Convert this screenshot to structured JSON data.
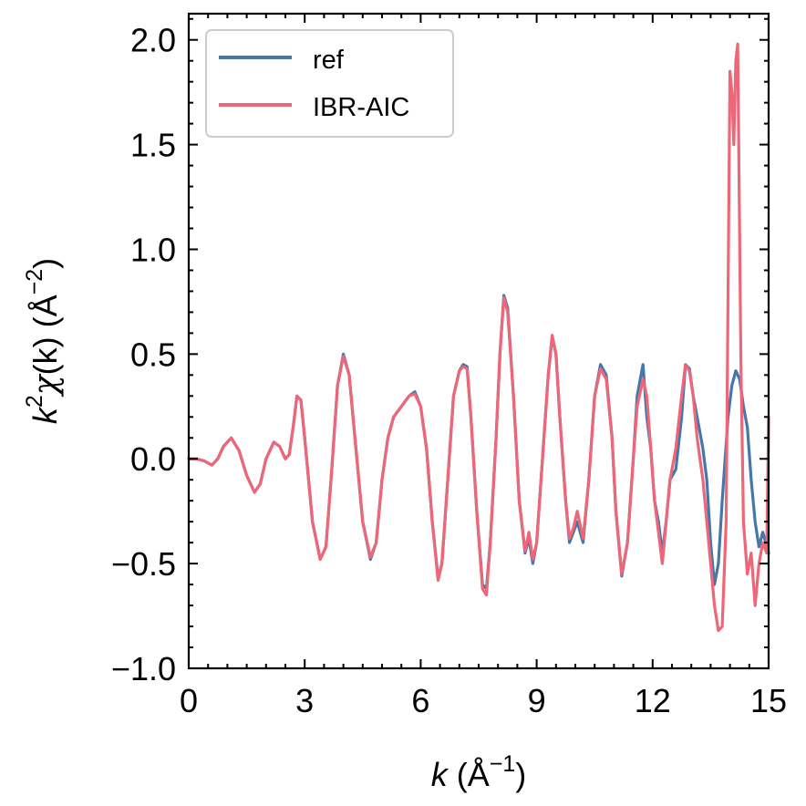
{
  "chart_data": {
    "type": "line",
    "xlabel_var": "k",
    "xlabel_rest": " (Å",
    "xlabel_sup": "−1",
    "xlabel_end": ")",
    "ylabel_var": "k",
    "ylabel_sup1": "2",
    "ylabel_chi": "χ",
    "ylabel_rest": "(k) (Å",
    "ylabel_sup2": "−2",
    "ylabel_end": ")",
    "xlim": [
      0,
      15
    ],
    "ylim": [
      -1.0,
      2.125
    ],
    "x_ticks": [
      0,
      3,
      6,
      9,
      12,
      15
    ],
    "x_tick_labels": [
      "0",
      "3",
      "6",
      "9",
      "12",
      "15"
    ],
    "y_ticks": [
      -1.0,
      -0.5,
      0.0,
      0.5,
      1.0,
      1.5,
      2.0
    ],
    "y_tick_labels": [
      "−1.0",
      "−0.5",
      "0.0",
      "0.5",
      "1.0",
      "1.5",
      "2.0"
    ],
    "grid": false,
    "legend_position": "top-left",
    "series": [
      {
        "name": "ref",
        "color": "#4477AA",
        "points": [
          [
            0.0,
            0.0
          ],
          [
            0.2,
            0.0
          ],
          [
            0.4,
            -0.01
          ],
          [
            0.6,
            -0.03
          ],
          [
            0.75,
            0.0
          ],
          [
            0.9,
            0.06
          ],
          [
            1.1,
            0.1
          ],
          [
            1.3,
            0.04
          ],
          [
            1.5,
            -0.08
          ],
          [
            1.7,
            -0.16
          ],
          [
            1.85,
            -0.12
          ],
          [
            2.0,
            0.0
          ],
          [
            2.2,
            0.08
          ],
          [
            2.35,
            0.06
          ],
          [
            2.5,
            0.0
          ],
          [
            2.6,
            0.02
          ],
          [
            2.7,
            0.15
          ],
          [
            2.8,
            0.3
          ],
          [
            2.9,
            0.28
          ],
          [
            3.0,
            0.1
          ],
          [
            3.2,
            -0.3
          ],
          [
            3.4,
            -0.48
          ],
          [
            3.55,
            -0.42
          ],
          [
            3.7,
            -0.05
          ],
          [
            3.85,
            0.35
          ],
          [
            4.0,
            0.5
          ],
          [
            4.15,
            0.4
          ],
          [
            4.3,
            0.1
          ],
          [
            4.5,
            -0.3
          ],
          [
            4.7,
            -0.48
          ],
          [
            4.85,
            -0.4
          ],
          [
            5.0,
            -0.1
          ],
          [
            5.15,
            0.1
          ],
          [
            5.3,
            0.2
          ],
          [
            5.5,
            0.25
          ],
          [
            5.7,
            0.3
          ],
          [
            5.85,
            0.32
          ],
          [
            6.0,
            0.25
          ],
          [
            6.15,
            0.05
          ],
          [
            6.3,
            -0.3
          ],
          [
            6.45,
            -0.57
          ],
          [
            6.55,
            -0.5
          ],
          [
            6.7,
            -0.1
          ],
          [
            6.85,
            0.3
          ],
          [
            7.0,
            0.42
          ],
          [
            7.1,
            0.45
          ],
          [
            7.2,
            0.44
          ],
          [
            7.3,
            0.2
          ],
          [
            7.45,
            -0.25
          ],
          [
            7.6,
            -0.6
          ],
          [
            7.7,
            -0.62
          ],
          [
            7.8,
            -0.4
          ],
          [
            7.95,
            0.1
          ],
          [
            8.05,
            0.5
          ],
          [
            8.15,
            0.78
          ],
          [
            8.25,
            0.72
          ],
          [
            8.4,
            0.3
          ],
          [
            8.55,
            -0.2
          ],
          [
            8.7,
            -0.45
          ],
          [
            8.8,
            -0.38
          ],
          [
            8.9,
            -0.5
          ],
          [
            9.0,
            -0.4
          ],
          [
            9.15,
            0.0
          ],
          [
            9.3,
            0.4
          ],
          [
            9.4,
            0.58
          ],
          [
            9.5,
            0.5
          ],
          [
            9.6,
            0.2
          ],
          [
            9.75,
            -0.2
          ],
          [
            9.85,
            -0.4
          ],
          [
            9.95,
            -0.35
          ],
          [
            10.05,
            -0.3
          ],
          [
            10.2,
            -0.4
          ],
          [
            10.35,
            -0.1
          ],
          [
            10.5,
            0.3
          ],
          [
            10.65,
            0.45
          ],
          [
            10.8,
            0.4
          ],
          [
            10.95,
            0.1
          ],
          [
            11.05,
            -0.25
          ],
          [
            11.2,
            -0.56
          ],
          [
            11.35,
            -0.4
          ],
          [
            11.5,
            0.0
          ],
          [
            11.6,
            0.3
          ],
          [
            11.75,
            0.45
          ],
          [
            11.85,
            0.2
          ],
          [
            11.95,
            0.05
          ],
          [
            12.05,
            -0.2
          ],
          [
            12.15,
            -0.3
          ],
          [
            12.25,
            -0.45
          ],
          [
            12.35,
            -0.3
          ],
          [
            12.45,
            -0.1
          ],
          [
            12.6,
            -0.05
          ],
          [
            12.75,
            0.2
          ],
          [
            12.85,
            0.45
          ],
          [
            12.95,
            0.43
          ],
          [
            13.05,
            0.3
          ],
          [
            13.15,
            0.2
          ],
          [
            13.3,
            0.05
          ],
          [
            13.4,
            -0.1
          ],
          [
            13.5,
            -0.4
          ],
          [
            13.6,
            -0.6
          ],
          [
            13.7,
            -0.5
          ],
          [
            13.8,
            -0.2
          ],
          [
            13.95,
            0.2
          ],
          [
            14.05,
            0.35
          ],
          [
            14.15,
            0.42
          ],
          [
            14.25,
            0.38
          ],
          [
            14.35,
            0.25
          ],
          [
            14.45,
            0.15
          ],
          [
            14.55,
            -0.1
          ],
          [
            14.65,
            -0.3
          ],
          [
            14.75,
            -0.42
          ],
          [
            14.85,
            -0.35
          ],
          [
            15.0,
            -0.45
          ]
        ]
      },
      {
        "name": "IBR-AIC",
        "color": "#EE6677",
        "points": [
          [
            0.0,
            0.0
          ],
          [
            0.2,
            0.0
          ],
          [
            0.4,
            -0.01
          ],
          [
            0.6,
            -0.03
          ],
          [
            0.75,
            0.0
          ],
          [
            0.9,
            0.06
          ],
          [
            1.1,
            0.1
          ],
          [
            1.3,
            0.04
          ],
          [
            1.5,
            -0.08
          ],
          [
            1.7,
            -0.16
          ],
          [
            1.85,
            -0.12
          ],
          [
            2.0,
            0.0
          ],
          [
            2.2,
            0.08
          ],
          [
            2.35,
            0.06
          ],
          [
            2.5,
            0.0
          ],
          [
            2.6,
            0.02
          ],
          [
            2.7,
            0.15
          ],
          [
            2.8,
            0.3
          ],
          [
            2.9,
            0.28
          ],
          [
            3.0,
            0.1
          ],
          [
            3.2,
            -0.3
          ],
          [
            3.4,
            -0.48
          ],
          [
            3.55,
            -0.42
          ],
          [
            3.7,
            -0.05
          ],
          [
            3.85,
            0.35
          ],
          [
            4.0,
            0.49
          ],
          [
            4.15,
            0.4
          ],
          [
            4.3,
            0.1
          ],
          [
            4.5,
            -0.3
          ],
          [
            4.7,
            -0.47
          ],
          [
            4.85,
            -0.4
          ],
          [
            5.0,
            -0.1
          ],
          [
            5.15,
            0.1
          ],
          [
            5.3,
            0.2
          ],
          [
            5.5,
            0.25
          ],
          [
            5.7,
            0.3
          ],
          [
            5.85,
            0.31
          ],
          [
            6.0,
            0.25
          ],
          [
            6.15,
            0.05
          ],
          [
            6.3,
            -0.3
          ],
          [
            6.45,
            -0.58
          ],
          [
            6.55,
            -0.5
          ],
          [
            6.7,
            -0.1
          ],
          [
            6.85,
            0.3
          ],
          [
            7.0,
            0.42
          ],
          [
            7.1,
            0.44
          ],
          [
            7.2,
            0.43
          ],
          [
            7.3,
            0.2
          ],
          [
            7.45,
            -0.25
          ],
          [
            7.6,
            -0.62
          ],
          [
            7.7,
            -0.65
          ],
          [
            7.8,
            -0.4
          ],
          [
            7.95,
            0.1
          ],
          [
            8.05,
            0.5
          ],
          [
            8.15,
            0.77
          ],
          [
            8.25,
            0.7
          ],
          [
            8.4,
            0.3
          ],
          [
            8.55,
            -0.2
          ],
          [
            8.7,
            -0.44
          ],
          [
            8.8,
            -0.35
          ],
          [
            8.9,
            -0.48
          ],
          [
            9.0,
            -0.4
          ],
          [
            9.15,
            0.0
          ],
          [
            9.3,
            0.4
          ],
          [
            9.4,
            0.59
          ],
          [
            9.5,
            0.5
          ],
          [
            9.6,
            0.2
          ],
          [
            9.75,
            -0.2
          ],
          [
            9.85,
            -0.38
          ],
          [
            9.95,
            -0.33
          ],
          [
            10.05,
            -0.25
          ],
          [
            10.2,
            -0.38
          ],
          [
            10.35,
            -0.1
          ],
          [
            10.5,
            0.3
          ],
          [
            10.65,
            0.43
          ],
          [
            10.8,
            0.38
          ],
          [
            10.95,
            0.1
          ],
          [
            11.05,
            -0.25
          ],
          [
            11.2,
            -0.55
          ],
          [
            11.35,
            -0.4
          ],
          [
            11.5,
            0.0
          ],
          [
            11.6,
            0.25
          ],
          [
            11.75,
            0.38
          ],
          [
            11.85,
            0.3
          ],
          [
            11.95,
            0.05
          ],
          [
            12.05,
            -0.2
          ],
          [
            12.15,
            -0.35
          ],
          [
            12.25,
            -0.5
          ],
          [
            12.35,
            -0.3
          ],
          [
            12.45,
            -0.1
          ],
          [
            12.6,
            0.05
          ],
          [
            12.75,
            0.3
          ],
          [
            12.85,
            0.45
          ],
          [
            12.95,
            0.42
          ],
          [
            13.05,
            0.3
          ],
          [
            13.15,
            0.1
          ],
          [
            13.3,
            -0.1
          ],
          [
            13.4,
            -0.3
          ],
          [
            13.5,
            -0.5
          ],
          [
            13.6,
            -0.7
          ],
          [
            13.7,
            -0.82
          ],
          [
            13.8,
            -0.8
          ],
          [
            13.9,
            -0.3
          ],
          [
            14.0,
            1.85
          ],
          [
            14.05,
            1.75
          ],
          [
            14.1,
            1.5
          ],
          [
            14.15,
            1.9
          ],
          [
            14.2,
            1.98
          ],
          [
            14.28,
            0.5
          ],
          [
            14.35,
            -0.3
          ],
          [
            14.45,
            -0.55
          ],
          [
            14.55,
            -0.45
          ],
          [
            14.65,
            -0.7
          ],
          [
            14.75,
            -0.5
          ],
          [
            14.85,
            -0.4
          ],
          [
            14.95,
            -0.45
          ],
          [
            15.0,
            0.2
          ]
        ]
      }
    ]
  }
}
